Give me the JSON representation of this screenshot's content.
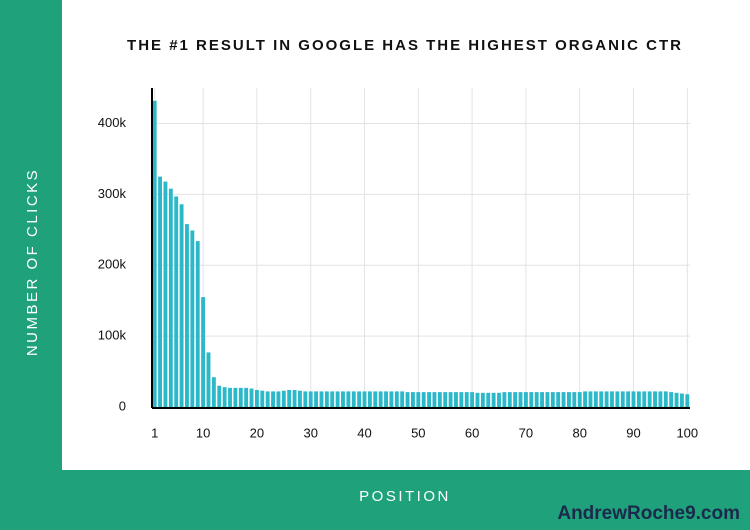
{
  "chart_data": {
    "type": "bar",
    "title": "THE #1 RESULT IN GOOGLE HAS THE HIGHEST ORGANIC CTR",
    "x_label": "POSITION",
    "y_label": "NUMBER OF CLICKS",
    "source": "AndrewRoche9.com",
    "x": [
      1,
      2,
      3,
      4,
      5,
      6,
      7,
      8,
      9,
      10,
      11,
      12,
      13,
      14,
      15,
      16,
      17,
      18,
      19,
      20,
      21,
      22,
      23,
      24,
      25,
      26,
      27,
      28,
      29,
      30,
      31,
      32,
      33,
      34,
      35,
      36,
      37,
      38,
      39,
      40,
      41,
      42,
      43,
      44,
      45,
      46,
      47,
      48,
      49,
      50,
      51,
      52,
      53,
      54,
      55,
      56,
      57,
      58,
      59,
      60,
      61,
      62,
      63,
      64,
      65,
      66,
      67,
      68,
      69,
      70,
      71,
      72,
      73,
      74,
      75,
      76,
      77,
      78,
      79,
      80,
      81,
      82,
      83,
      84,
      85,
      86,
      87,
      88,
      89,
      90,
      91,
      92,
      93,
      94,
      95,
      96,
      97,
      98,
      99,
      100
    ],
    "values": [
      432000,
      325000,
      318000,
      308000,
      297000,
      286000,
      258000,
      249000,
      234000,
      155000,
      77000,
      42000,
      30000,
      28000,
      27000,
      27000,
      27000,
      27000,
      26000,
      24000,
      23000,
      22000,
      22000,
      22000,
      23000,
      24000,
      24000,
      23000,
      22000,
      22000,
      22000,
      22000,
      22000,
      22000,
      22000,
      22000,
      22000,
      22000,
      22000,
      22000,
      22000,
      22000,
      22000,
      22000,
      22000,
      22000,
      22000,
      21000,
      21000,
      21000,
      21000,
      21000,
      21000,
      21000,
      21000,
      21000,
      21000,
      21000,
      21000,
      21000,
      20000,
      20000,
      20000,
      20000,
      20000,
      21000,
      21000,
      21000,
      21000,
      21000,
      21000,
      21000,
      21000,
      21000,
      21000,
      21000,
      21000,
      21000,
      21000,
      21000,
      22000,
      22000,
      22000,
      22000,
      22000,
      22000,
      22000,
      22000,
      22000,
      22000,
      22000,
      22000,
      22000,
      22000,
      22000,
      22000,
      21000,
      20000,
      19000,
      18000
    ],
    "color": "#2bb8c9",
    "xlim": [
      0.5,
      100.5
    ],
    "xticks": [
      1,
      10,
      20,
      30,
      40,
      50,
      60,
      70,
      80,
      90,
      100
    ],
    "ylim": [
      0,
      450000
    ],
    "yticks": [
      {
        "value": 0,
        "label": "0"
      },
      {
        "value": 100000,
        "label": "100k"
      },
      {
        "value": 200000,
        "label": "200k"
      },
      {
        "value": 300000,
        "label": "300k"
      },
      {
        "value": 400000,
        "label": "400k"
      }
    ],
    "grid": true
  }
}
